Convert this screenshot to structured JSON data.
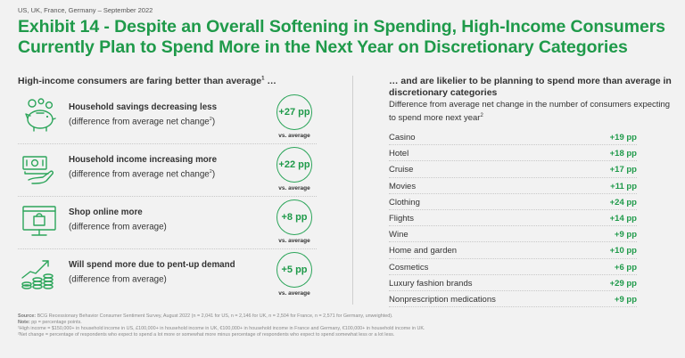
{
  "header": {
    "eyebrow": "US, UK, France, Germany – September 2022",
    "title": "Exhibit 14 - Despite an Overall Softening in Spending, High-Income Consumers Currently Plan to Spend More in the Next Year on Discretionary Categories"
  },
  "left": {
    "heading": "High-income consumers are faring better than average",
    "heading_sup": "1",
    "heading_suffix": " …",
    "vs_label": "vs. average",
    "items": [
      {
        "title": "Household savings decreasing less",
        "detail": "(difference from average net change",
        "detail_sup": "2",
        "detail_end": ")",
        "value": "+27 pp",
        "icon": "piggy-bank-icon"
      },
      {
        "title": "Household income increasing more",
        "detail": "(difference from average net change",
        "detail_sup": "2",
        "detail_end": ")",
        "value": "+22 pp",
        "icon": "cash-hand-icon"
      },
      {
        "title": "Shop online more",
        "detail": "(difference from average)",
        "detail_sup": "",
        "detail_end": "",
        "value": "+8 pp",
        "icon": "online-shopping-icon"
      },
      {
        "title": "Will spend more due to pent-up demand",
        "detail": "(difference from average)",
        "detail_sup": "",
        "detail_end": "",
        "value": "+5 pp",
        "icon": "rising-coins-icon"
      }
    ]
  },
  "right": {
    "heading": "… and are likelier to be planning to spend more than average in discretionary categories",
    "subheading": "Difference from average net change in the number of consumers expecting to spend more next year",
    "subheading_sup": "2"
  },
  "chart_data": {
    "type": "table",
    "title": "Difference from average net change in the number of consumers expecting to spend more next year",
    "unit": "pp",
    "categories": [
      "Casino",
      "Hotel",
      "Cruise",
      "Movies",
      "Clothing",
      "Flights",
      "Wine",
      "Home and garden",
      "Cosmetics",
      "Luxury fashion brands",
      "Nonprescription medications"
    ],
    "values": [
      19,
      18,
      17,
      11,
      24,
      14,
      9,
      10,
      6,
      29,
      9
    ],
    "labels": [
      "+19 pp",
      "+18 pp",
      "+17 pp",
      "+11 pp",
      "+24 pp",
      "+14 pp",
      "+9 pp",
      "+10 pp",
      "+6 pp",
      "+29 pp",
      "+9 pp"
    ],
    "summary_metrics": {
      "categories": [
        "Household savings decreasing less",
        "Household income increasing more",
        "Shop online more",
        "Will spend more due to pent-up demand"
      ],
      "values": [
        27,
        22,
        8,
        5
      ]
    }
  },
  "footnotes": {
    "source_label": "Source:",
    "source": " BCG Recessionary Behavior Consumer Sentiment Survey, August 2022 (n = 2,041 for US, n = 2,146 for UK, n = 2,504 for France, n = 2,571 for Germany, unweighted).",
    "note_label": "Note:",
    "note": " pp = percentage points.",
    "fn1": "¹High income = $150,000+ in household income in US, £100,000+ in household income in UK, €100,000+ in household income in France and Germany, €100,000+ in household income in UK.",
    "fn2": "²Net change = percentage of respondents who expect to spend a lot more or somewhat more minus percentage of respondents who expect to spend somewhat less or a lot less."
  },
  "colors": {
    "accent": "#1f9a4a",
    "background": "#f2f2f2",
    "text": "#333333"
  }
}
